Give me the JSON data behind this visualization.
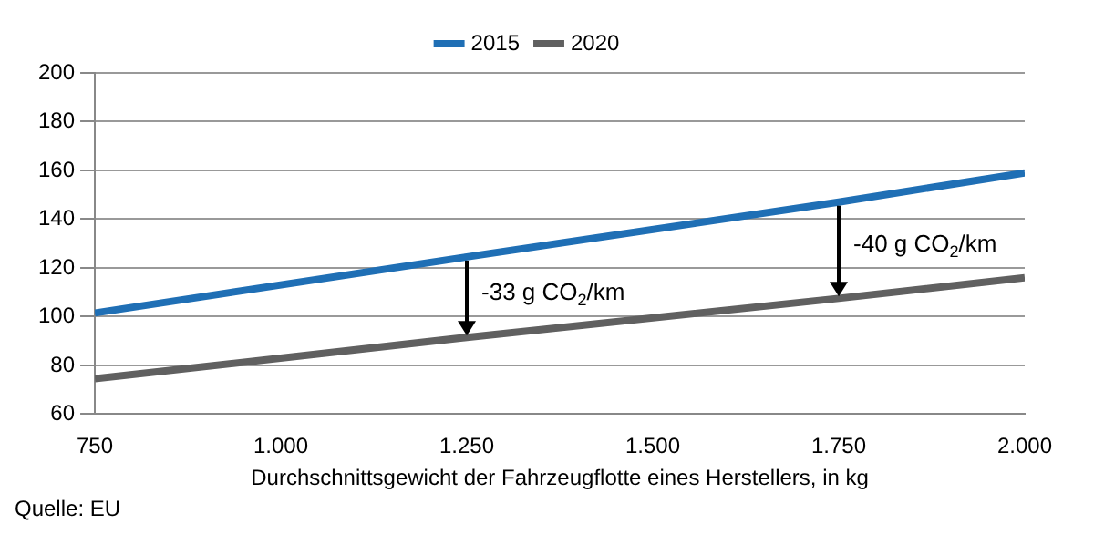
{
  "chart_data": {
    "type": "line",
    "xlabel": "Durchschnittsgewicht der Fahrzeugflotte eines Herstellers, in kg",
    "series": [
      {
        "name": "2015",
        "color": "#1f6fb5",
        "x": [
          750,
          1250,
          1750,
          2000
        ],
        "values": [
          101.5,
          124.5,
          147,
          159
        ]
      },
      {
        "name": "2020",
        "color": "#606060",
        "x": [
          750,
          1250,
          1750,
          2000
        ],
        "values": [
          74.5,
          91.5,
          107.5,
          116
        ]
      }
    ],
    "xlim": [
      750,
      2000
    ],
    "xticks": [
      750,
      {
        "value": 1000,
        "label": "1.000"
      },
      {
        "value": 1250,
        "label": "1.250"
      },
      {
        "value": 1500,
        "label": "1.500"
      },
      {
        "value": 1750,
        "label": "1.750"
      },
      {
        "value": 2000,
        "label": "2.000"
      }
    ],
    "ylim": [
      60,
      200
    ],
    "yticks": [
      60,
      80,
      100,
      120,
      140,
      160,
      180,
      200
    ],
    "grid": "y",
    "legend": "top",
    "marker": "none",
    "line_style": "solid",
    "annotations": [
      {
        "text": "-33 g CO$_{2}$/km",
        "x": 1250,
        "y": 91.5
      },
      {
        "text": "-40 g CO$_{2}$/km",
        "x": 1750,
        "y": 107.5
      },
      "Quelle: EU"
    ]
  }
}
